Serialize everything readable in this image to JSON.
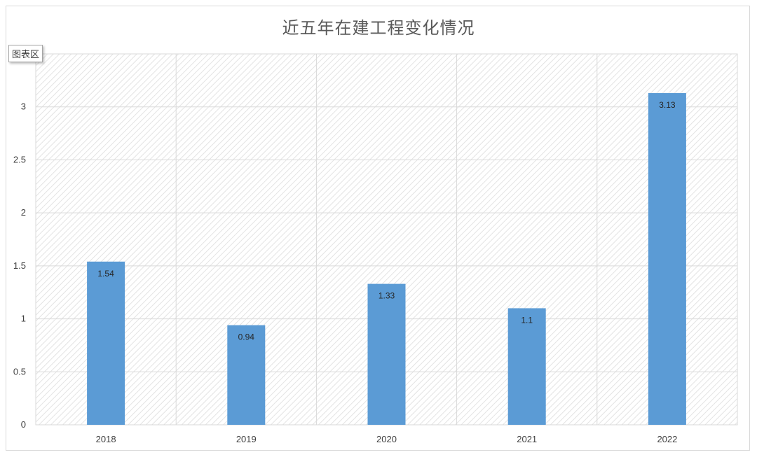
{
  "chart_title": "近五年在建工程变化情况",
  "area_tag": "图表区",
  "colors": {
    "bar": "#5b9bd5",
    "grid": "#d9d9d9",
    "hatch": "#e3e3e3",
    "text": "#404040"
  },
  "chart_data": {
    "type": "bar",
    "title": "近五年在建工程变化情况",
    "categories": [
      "2018",
      "2019",
      "2020",
      "2021",
      "2022"
    ],
    "values": [
      1.54,
      0.94,
      1.33,
      1.1,
      3.13
    ],
    "data_labels": [
      "1.54",
      "0.94",
      "1.33",
      "1.1",
      "3.13"
    ],
    "y_ticks": [
      "0",
      "0.5",
      "1",
      "1.5",
      "2",
      "2.5",
      "3"
    ],
    "xlabel": "",
    "ylabel": "",
    "ylim": [
      0,
      3.5
    ],
    "grid": true,
    "legend": "none"
  }
}
